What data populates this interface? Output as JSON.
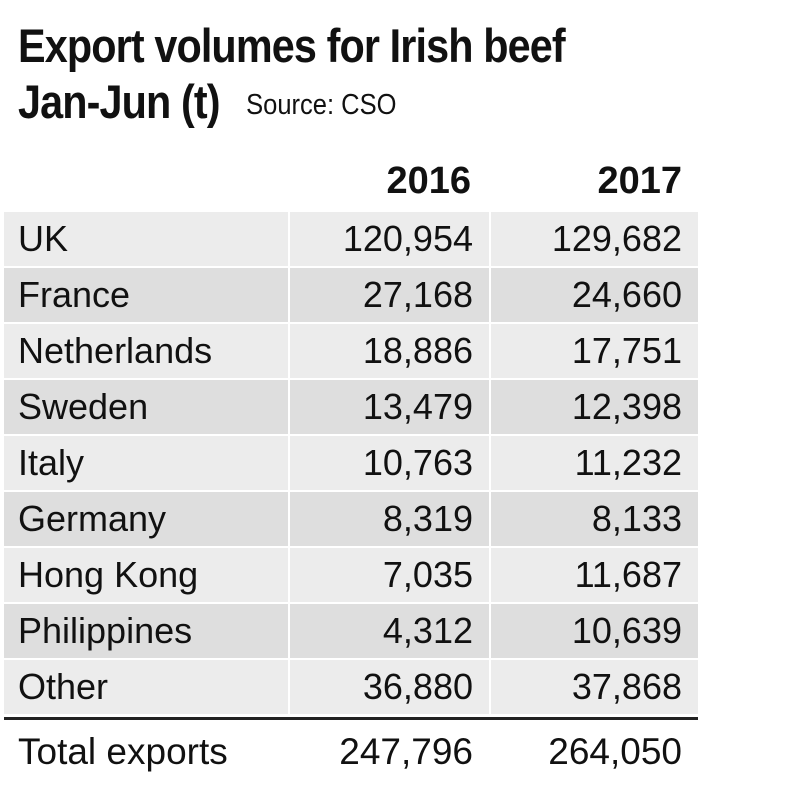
{
  "title_line1": "Export volumes for Irish beef",
  "title_line2": "Jan-Jun (t)",
  "source": "Source: CSO",
  "chart_data": {
    "type": "table",
    "columns": [
      "2016",
      "2017"
    ],
    "rows": [
      {
        "label": "UK",
        "values": [
          "120,954",
          "129,682"
        ]
      },
      {
        "label": "France",
        "values": [
          "27,168",
          "24,660"
        ]
      },
      {
        "label": "Netherlands",
        "values": [
          "18,886",
          "17,751"
        ]
      },
      {
        "label": "Sweden",
        "values": [
          "13,479",
          "12,398"
        ]
      },
      {
        "label": "Italy",
        "values": [
          "10,763",
          "11,232"
        ]
      },
      {
        "label": "Germany",
        "values": [
          "8,319",
          "8,133"
        ]
      },
      {
        "label": "Hong Kong",
        "values": [
          "7,035",
          "11,687"
        ]
      },
      {
        "label": "Philippines",
        "values": [
          "4,312",
          "10,639"
        ]
      },
      {
        "label": "Other",
        "values": [
          "36,880",
          "37,868"
        ]
      }
    ],
    "total": {
      "label": "Total exports",
      "values": [
        "247,796",
        "264,050"
      ]
    }
  }
}
